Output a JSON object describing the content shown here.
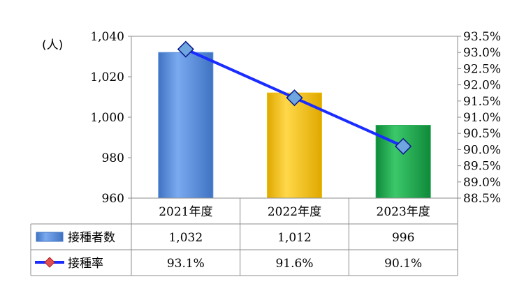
{
  "chart_data": {
    "type": "bar",
    "categories": [
      "2021年度",
      "2022年度",
      "2023年度"
    ],
    "series": [
      {
        "name": "接種者数",
        "kind": "bar",
        "axis": "left",
        "values": [
          1032,
          1012,
          996
        ],
        "display_values": [
          "1,032",
          "1,012",
          "996"
        ],
        "colors": [
          "#5b8fd8",
          "#f2c200",
          "#19a64c"
        ]
      },
      {
        "name": "接種率",
        "kind": "line",
        "axis": "right",
        "values": [
          93.1,
          91.6,
          90.1
        ],
        "display_values": [
          "93.1%",
          "91.6%",
          "90.1%"
        ],
        "color": "#1a2cff",
        "marker_color": "#6fa6e0"
      }
    ],
    "y_left": {
      "unit_label": "(人)",
      "ylim": [
        960,
        1040
      ],
      "ticks": [
        960,
        980,
        1000,
        1020,
        1040
      ],
      "tick_labels": [
        "960",
        "980",
        "1,000",
        "1,020",
        "1,040"
      ]
    },
    "y_right": {
      "ylim": [
        88.5,
        93.5
      ],
      "ticks": [
        88.5,
        89.0,
        89.5,
        90.0,
        90.5,
        91.0,
        91.5,
        92.0,
        92.5,
        93.0,
        93.5
      ],
      "tick_labels": [
        "88.5%",
        "89.0%",
        "89.5%",
        "90.0%",
        "90.5%",
        "91.0%",
        "91.5%",
        "92.0%",
        "92.5%",
        "93.0%",
        "93.5%"
      ]
    },
    "grid": false,
    "legend": "data-table"
  }
}
